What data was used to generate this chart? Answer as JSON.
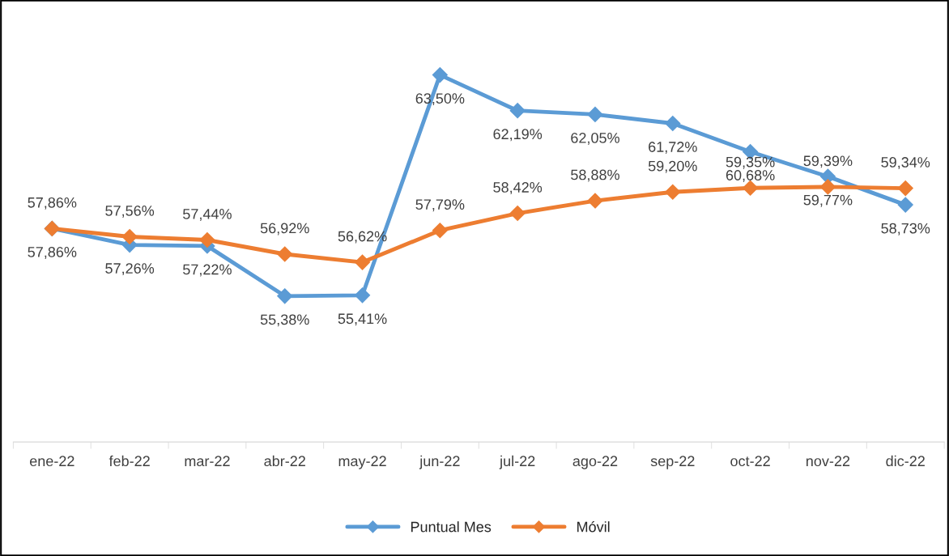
{
  "chart_data": {
    "type": "line",
    "categories": [
      "ene-22",
      "feb-22",
      "mar-22",
      "abr-22",
      "may-22",
      "jun-22",
      "jul-22",
      "ago-22",
      "sep-22",
      "oct-22",
      "nov-22",
      "dic-22"
    ],
    "series": [
      {
        "name": "Puntual Mes",
        "color": "#5b9bd5",
        "values": [
          57.86,
          57.26,
          57.22,
          55.38,
          55.41,
          63.5,
          62.19,
          62.05,
          61.72,
          60.68,
          59.77,
          58.73
        ],
        "value_labels": [
          "57,86%",
          "57,26%",
          "57,22%",
          "55,38%",
          "55,41%",
          "63,50%",
          "62,19%",
          "62,05%",
          "61,72%",
          "60,68%",
          "59,77%",
          "58,73%"
        ]
      },
      {
        "name": "Móvil",
        "color": "#ed7d31",
        "values": [
          57.86,
          57.56,
          57.44,
          56.92,
          56.62,
          57.79,
          58.42,
          58.88,
          59.2,
          59.35,
          59.39,
          59.34
        ],
        "value_labels": [
          "57,86%",
          "57,56%",
          "57,44%",
          "56,92%",
          "56,62%",
          "57,79%",
          "58,42%",
          "58,88%",
          "59,20%",
          "59,35%",
          "59,39%",
          "59,34%"
        ]
      }
    ],
    "marker": "diamond",
    "line_style": "solid",
    "legend": "bottom",
    "grid": false
  }
}
